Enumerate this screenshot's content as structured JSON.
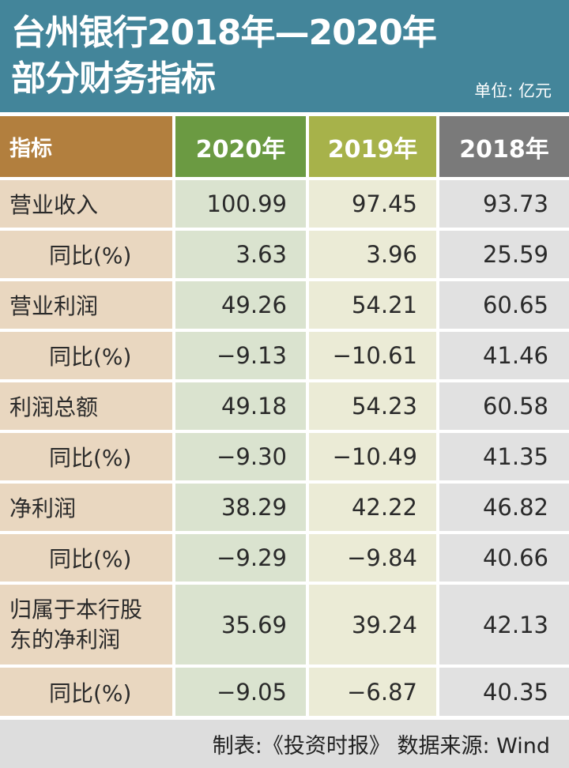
{
  "header": {
    "title_line1": "台州银行2018年—2020年",
    "title_line2": "部分财务指标",
    "unit": "单位: 亿元"
  },
  "table": {
    "columns": [
      "指标",
      "2020年",
      "2019年",
      "2018年"
    ],
    "rows": [
      {
        "label": "营业收入",
        "v2020": "100.99",
        "v2019": "97.45",
        "v2018": "93.73"
      },
      {
        "label": "同比(%)",
        "v2020": "3.63",
        "v2019": "3.96",
        "v2018": "25.59"
      },
      {
        "label": "营业利润",
        "v2020": "49.26",
        "v2019": "54.21",
        "v2018": "60.65"
      },
      {
        "label": "同比(%)",
        "v2020": "−9.13",
        "v2019": "−10.61",
        "v2018": "41.46"
      },
      {
        "label": "利润总额",
        "v2020": "49.18",
        "v2019": "54.23",
        "v2018": "60.58"
      },
      {
        "label": "同比(%)",
        "v2020": "−9.30",
        "v2019": "−10.49",
        "v2018": "41.35"
      },
      {
        "label": "净利润",
        "v2020": "38.29",
        "v2019": "42.22",
        "v2018": "46.82"
      },
      {
        "label": "同比(%)",
        "v2020": "−9.29",
        "v2019": "−9.84",
        "v2018": "40.66"
      },
      {
        "label_line1": "归属于本行股",
        "label_line2": "东的净利润",
        "v2020": "35.69",
        "v2019": "39.24",
        "v2018": "42.13"
      },
      {
        "label": "同比(%)",
        "v2020": "−9.05",
        "v2019": "−6.87",
        "v2018": "40.35"
      }
    ]
  },
  "footer": {
    "credit": "制表:《投资时报》 数据来源: Wind"
  },
  "colors": {
    "header_bg": "#43859a",
    "indicator_header": "#b27f3e",
    "col2020_header": "#6b9a42",
    "col2019_header": "#a7b24a",
    "col2018_header": "#7a7a7a"
  }
}
